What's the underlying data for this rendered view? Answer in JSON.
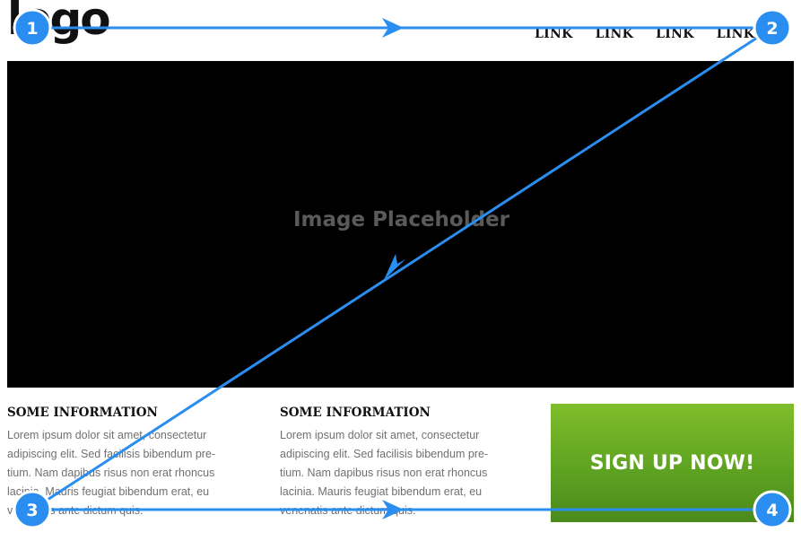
{
  "header": {
    "logo": "logo",
    "nav_links": [
      "LINK",
      "LINK",
      "LINK",
      "LINK"
    ]
  },
  "hero": {
    "caption": "Image Placeholder"
  },
  "info": [
    {
      "title": "SOME INFORMATION",
      "lines": [
        "Lorem ipsum dolor sit amet, consectetur",
        "adipiscing elit. Sed facilisis bibendum pre-",
        "tium. Nam dapibus risus non erat rhoncus",
        "lacinia. Mauris feugiat bibendum erat, eu",
        "venenatis ante dictum quis."
      ]
    },
    {
      "title": "SOME INFORMATION",
      "lines": [
        "Lorem ipsum dolor sit amet, consectetur",
        "adipiscing elit. Sed facilisis bibendum pre-",
        "tium. Nam dapibus risus non erat rhoncus",
        "lacinia. Mauris feugiat bibendum erat, eu",
        "venenatis ante dictum quis."
      ]
    }
  ],
  "cta": {
    "label": "SIGN UP NOW!"
  },
  "path_markers": [
    "1",
    "2",
    "3",
    "4"
  ],
  "colors": {
    "path": "#2a8df0",
    "cta_top": "#7fbd2a",
    "cta_bottom": "#4a8a1c",
    "hero_background": "#000000"
  }
}
